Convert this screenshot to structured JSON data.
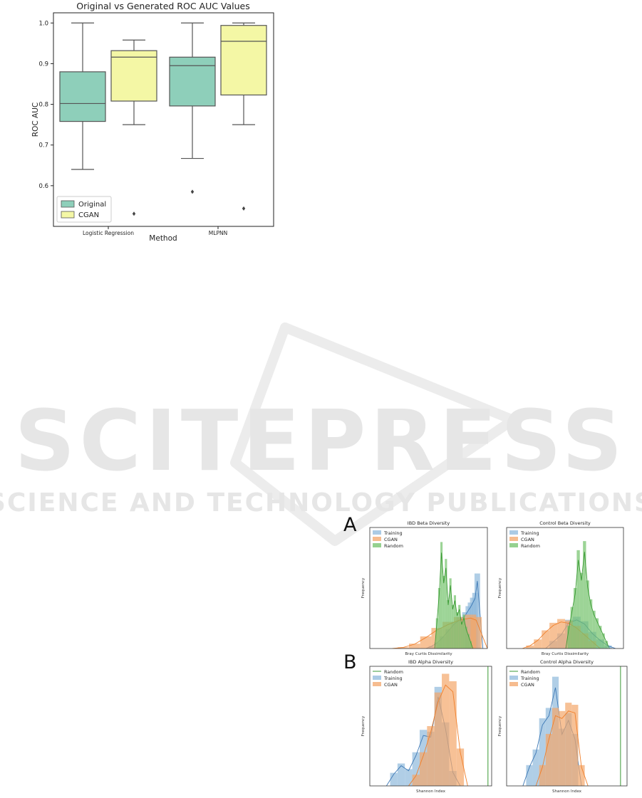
{
  "watermark": {
    "main": "SCITEPRESS",
    "sub": "SCIENCE AND TECHNOLOGY PUBLICATIONS",
    "color": "#e6e6e6"
  },
  "colors": {
    "original": "#8ecfba",
    "cgan": "#f4f7a5",
    "training": "#8fb9dc",
    "cgan_hist": "#f3a66a",
    "random": "#72c26a",
    "training_line": "#3d78b5",
    "cgan_line": "#f07f2a",
    "random_line": "#3a9a34",
    "box_edge": "#555555"
  },
  "panels": {
    "a": "A",
    "b": "B"
  },
  "chart_data": [
    {
      "type": "box",
      "title": "Original vs Generated ROC AUC Values",
      "xlabel": "Method",
      "ylabel": "ROC AUC",
      "ylim": [
        0.5,
        1.025
      ],
      "yticks": [
        "0.6",
        "0.7",
        "0.8",
        "0.9",
        "1.0"
      ],
      "categories": [
        "Logistic Regression",
        "MLPNN"
      ],
      "legend": {
        "position": "lower-left",
        "entries": [
          "Original",
          "CGAN"
        ]
      },
      "series": [
        {
          "name": "Original",
          "boxes": [
            {
              "whisker_low": 0.64,
              "q1": 0.758,
              "median": 0.802,
              "q3": 0.88,
              "whisker_high": 1.0,
              "outliers": []
            },
            {
              "whisker_low": 0.667,
              "q1": 0.796,
              "median": 0.895,
              "q3": 0.916,
              "whisker_high": 1.0,
              "outliers": [
                0.585
              ]
            }
          ]
        },
        {
          "name": "CGAN",
          "boxes": [
            {
              "whisker_low": 0.75,
              "q1": 0.808,
              "median": 0.916,
              "q3": 0.932,
              "whisker_high": 0.958,
              "outliers": [
                0.531
              ]
            },
            {
              "whisker_low": 0.75,
              "q1": 0.823,
              "median": 0.955,
              "q3": 0.994,
              "whisker_high": 1.0,
              "outliers": [
                0.544
              ]
            }
          ]
        }
      ]
    },
    {
      "type": "histogram",
      "title": "IBD Beta Diversity",
      "xlabel": "Bray Curtis Dissimilarity",
      "ylabel": "Frequency",
      "xlim": [
        0.0,
        1.05
      ],
      "ylim": [
        0,
        10
      ],
      "legend": {
        "position": "top-left",
        "entries": [
          "Training",
          "CGAN",
          "Random"
        ]
      },
      "series": [
        {
          "name": "Training",
          "kind": "hist+kde",
          "bins": [
            [
              0.55,
              0.2
            ],
            [
              0.6,
              0.5
            ],
            [
              0.65,
              1.0
            ],
            [
              0.7,
              1.6
            ],
            [
              0.75,
              2.2
            ],
            [
              0.8,
              2.6
            ],
            [
              0.85,
              3.0
            ],
            [
              0.88,
              3.5
            ],
            [
              0.9,
              3.8
            ],
            [
              0.92,
              4.2
            ],
            [
              0.94,
              4.6
            ],
            [
              0.96,
              6.2
            ]
          ]
        },
        {
          "name": "CGAN",
          "kind": "hist+kde",
          "bins": [
            [
              0.3,
              0.1
            ],
            [
              0.4,
              0.4
            ],
            [
              0.5,
              1.0
            ],
            [
              0.6,
              1.7
            ],
            [
              0.7,
              2.2
            ],
            [
              0.8,
              2.6
            ],
            [
              0.9,
              2.8
            ],
            [
              0.95,
              2.6
            ]
          ]
        },
        {
          "name": "Random",
          "kind": "hist+kde",
          "bins": [
            [
              0.6,
              2.5
            ],
            [
              0.62,
              5.0
            ],
            [
              0.64,
              8.8
            ],
            [
              0.66,
              6.0
            ],
            [
              0.68,
              7.4
            ],
            [
              0.7,
              4.0
            ],
            [
              0.72,
              5.8
            ],
            [
              0.74,
              3.6
            ],
            [
              0.76,
              4.4
            ],
            [
              0.78,
              3.0
            ],
            [
              0.8,
              3.6
            ],
            [
              0.82,
              2.2
            ],
            [
              0.84,
              2.8
            ],
            [
              0.86,
              1.8
            ],
            [
              0.88,
              1.2
            ],
            [
              0.9,
              0.6
            ]
          ]
        }
      ]
    },
    {
      "type": "histogram",
      "title": "Control Beta Diversity",
      "xlabel": "Bray Curtis Dissimilarity",
      "ylabel": "Frequency",
      "xlim": [
        0.2,
        0.95
      ],
      "ylim": [
        0,
        16
      ],
      "legend": {
        "position": "top-left",
        "entries": [
          "Training",
          "CGAN",
          "Random"
        ]
      },
      "series": [
        {
          "name": "Training",
          "kind": "hist+kde",
          "bins": [
            [
              0.5,
              1.0
            ],
            [
              0.55,
              2.0
            ],
            [
              0.6,
              3.8
            ],
            [
              0.65,
              4.2
            ],
            [
              0.7,
              3.6
            ],
            [
              0.75,
              2.2
            ],
            [
              0.8,
              1.2
            ],
            [
              0.85,
              0.4
            ]
          ]
        },
        {
          "name": "CGAN",
          "kind": "hist+kde",
          "bins": [
            [
              0.35,
              0.4
            ],
            [
              0.4,
              1.2
            ],
            [
              0.45,
              2.4
            ],
            [
              0.5,
              3.4
            ],
            [
              0.55,
              3.9
            ],
            [
              0.6,
              3.7
            ],
            [
              0.65,
              3.0
            ],
            [
              0.7,
              2.0
            ],
            [
              0.75,
              1.0
            ]
          ]
        },
        {
          "name": "Random",
          "kind": "hist+kde",
          "bins": [
            [
              0.6,
              3.0
            ],
            [
              0.62,
              5.5
            ],
            [
              0.64,
              8.0
            ],
            [
              0.66,
              13.0
            ],
            [
              0.68,
              10.0
            ],
            [
              0.7,
              14.2
            ],
            [
              0.72,
              9.0
            ],
            [
              0.74,
              6.5
            ],
            [
              0.76,
              5.0
            ],
            [
              0.78,
              4.0
            ],
            [
              0.8,
              3.0
            ],
            [
              0.82,
              2.0
            ],
            [
              0.84,
              1.0
            ]
          ]
        }
      ]
    },
    {
      "type": "histogram",
      "title": "IBD Alpha Diversity",
      "xlabel": "Shannon Index",
      "ylabel": "Frequency",
      "xlim": [
        -0.3,
        6.3
      ],
      "ylim": [
        0,
        3.2
      ],
      "legend": {
        "position": "top-left",
        "entries": [
          "Random",
          "Training",
          "CGAN"
        ]
      },
      "series": [
        {
          "name": "Training",
          "kind": "hist+kde",
          "bins": [
            [
              1.0,
              0.35
            ],
            [
              1.4,
              0.6
            ],
            [
              1.8,
              0.45
            ],
            [
              2.2,
              0.9
            ],
            [
              2.6,
              1.5
            ],
            [
              3.0,
              1.45
            ],
            [
              3.4,
              2.65
            ],
            [
              3.8,
              1.7
            ],
            [
              4.2,
              0.4
            ]
          ]
        },
        {
          "name": "CGAN",
          "kind": "hist+kde",
          "bins": [
            [
              2.2,
              0.3
            ],
            [
              2.6,
              0.9
            ],
            [
              3.0,
              1.6
            ],
            [
              3.4,
              2.5
            ],
            [
              3.8,
              3.0
            ],
            [
              4.2,
              2.8
            ],
            [
              4.6,
              1.0
            ]
          ]
        },
        {
          "name": "Random",
          "kind": "vline",
          "x": 6.1
        }
      ]
    },
    {
      "type": "histogram",
      "title": "Control Alpha Diversity",
      "xlabel": "Shannon Index",
      "ylabel": "Frequency",
      "xlim": [
        -0.2,
        7.2
      ],
      "ylim": [
        0,
        1.15
      ],
      "legend": {
        "position": "top-left",
        "entries": [
          "Random",
          "Training",
          "CGAN"
        ]
      },
      "series": [
        {
          "name": "Training",
          "kind": "hist+kde",
          "bins": [
            [
              1.2,
              0.2
            ],
            [
              1.6,
              0.35
            ],
            [
              2.0,
              0.65
            ],
            [
              2.4,
              0.75
            ],
            [
              2.8,
              1.05
            ],
            [
              3.2,
              0.55
            ],
            [
              3.6,
              0.7
            ],
            [
              4.0,
              0.5
            ]
          ]
        },
        {
          "name": "CGAN",
          "kind": "hist+kde",
          "bins": [
            [
              2.0,
              0.2
            ],
            [
              2.4,
              0.5
            ],
            [
              2.8,
              0.75
            ],
            [
              3.2,
              0.72
            ],
            [
              3.6,
              0.8
            ],
            [
              4.0,
              0.78
            ],
            [
              4.4,
              0.2
            ]
          ]
        },
        {
          "name": "Random",
          "kind": "vline",
          "x": 6.8
        }
      ]
    }
  ]
}
